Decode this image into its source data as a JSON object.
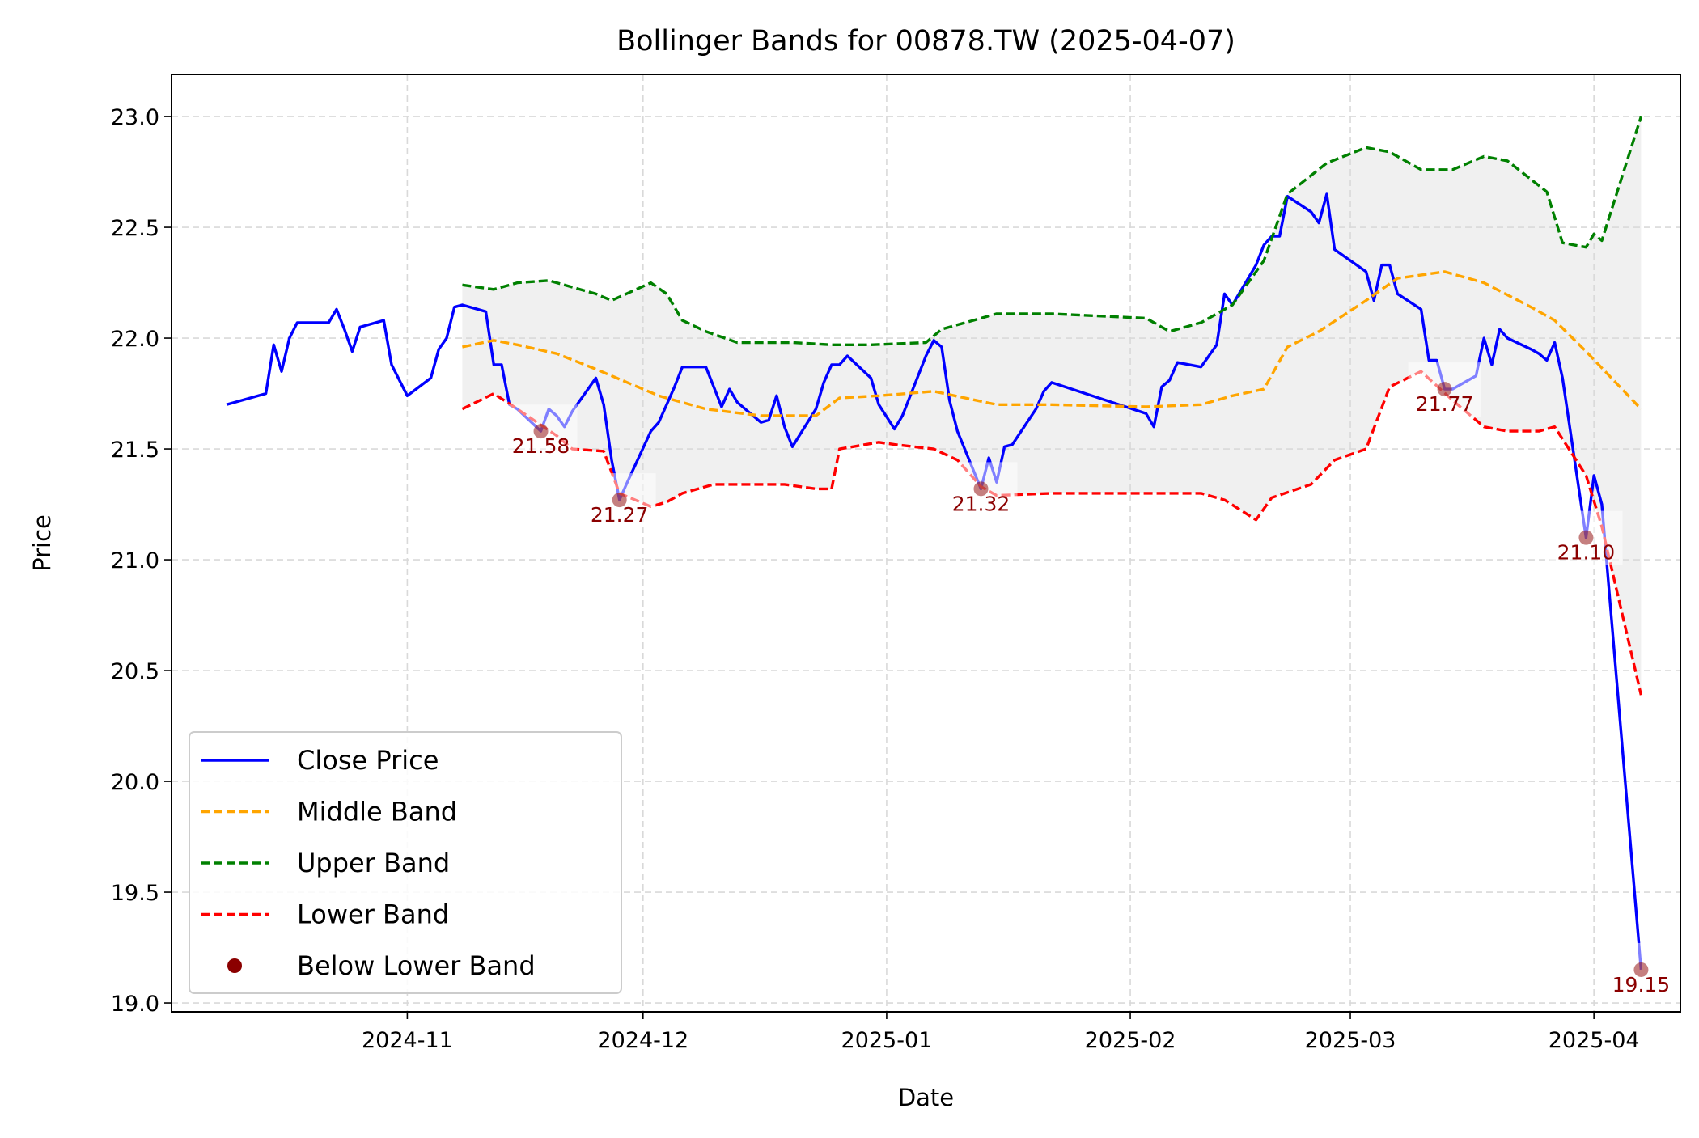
{
  "chart_data": {
    "type": "line",
    "title": "Bollinger Bands for 00878.TW (2025-04-07)",
    "xlabel": "Date",
    "ylabel": "Price",
    "xlim": [
      "2024-10-02",
      "2025-04-12"
    ],
    "ylim": [
      18.96,
      23.19
    ],
    "x_ticks": [
      "2024-11",
      "2024-12",
      "2025-01",
      "2025-02",
      "2025-03",
      "2025-04"
    ],
    "y_ticks": [
      "19.0",
      "19.5",
      "20.0",
      "20.5",
      "21.0",
      "21.5",
      "22.0",
      "22.5",
      "23.0"
    ],
    "grid": true,
    "legend_position": "lower-left",
    "colors": {
      "close": "#0000ff",
      "middle": "#ffa500",
      "upper": "#008000",
      "lower": "#ff0000",
      "below": "#8b0000",
      "band_fill": "#f0f0f0",
      "grid": "#d9d9d9"
    },
    "legend": [
      "Close Price",
      "Middle Band",
      "Upper Band",
      "Lower Band",
      "Below Lower Band"
    ],
    "series": [
      {
        "name": "Close Price",
        "color": "#0000ff",
        "style": "solid",
        "points": [
          [
            "2024-10-09",
            21.7
          ],
          [
            "2024-10-14",
            21.75
          ],
          [
            "2024-10-15",
            21.97
          ],
          [
            "2024-10-16",
            21.85
          ],
          [
            "2024-10-17",
            22.0
          ],
          [
            "2024-10-18",
            22.07
          ],
          [
            "2024-10-21",
            22.07
          ],
          [
            "2024-10-22",
            22.07
          ],
          [
            "2024-10-23",
            22.13
          ],
          [
            "2024-10-24",
            22.04
          ],
          [
            "2024-10-25",
            21.94
          ],
          [
            "2024-10-26",
            22.05
          ],
          [
            "2024-10-29",
            22.08
          ],
          [
            "2024-10-30",
            21.88
          ],
          [
            "2024-11-01",
            21.74
          ],
          [
            "2024-11-04",
            21.82
          ],
          [
            "2024-11-05",
            21.95
          ],
          [
            "2024-11-06",
            22.0
          ],
          [
            "2024-11-07",
            22.14
          ],
          [
            "2024-11-08",
            22.15
          ],
          [
            "2024-11-11",
            22.12
          ],
          [
            "2024-11-12",
            21.88
          ],
          [
            "2024-11-13",
            21.88
          ],
          [
            "2024-11-14",
            21.7
          ],
          [
            "2024-11-15",
            21.68
          ],
          [
            "2024-11-18",
            21.58
          ],
          [
            "2024-11-19",
            21.68
          ],
          [
            "2024-11-20",
            21.65
          ],
          [
            "2024-11-21",
            21.6
          ],
          [
            "2024-11-22",
            21.67
          ],
          [
            "2024-11-25",
            21.82
          ],
          [
            "2024-11-26",
            21.7
          ],
          [
            "2024-11-27",
            21.45
          ],
          [
            "2024-11-28",
            21.27
          ],
          [
            "2024-11-29",
            21.35
          ],
          [
            "2024-12-02",
            21.58
          ],
          [
            "2024-12-03",
            21.62
          ],
          [
            "2024-12-04",
            21.7
          ],
          [
            "2024-12-05",
            21.78
          ],
          [
            "2024-12-06",
            21.87
          ],
          [
            "2024-12-09",
            21.87
          ],
          [
            "2024-12-10",
            21.78
          ],
          [
            "2024-12-11",
            21.69
          ],
          [
            "2024-12-12",
            21.77
          ],
          [
            "2024-12-13",
            21.71
          ],
          [
            "2024-12-16",
            21.62
          ],
          [
            "2024-12-17",
            21.63
          ],
          [
            "2024-12-18",
            21.74
          ],
          [
            "2024-12-19",
            21.6
          ],
          [
            "2024-12-20",
            21.51
          ],
          [
            "2024-12-23",
            21.68
          ],
          [
            "2024-12-24",
            21.8
          ],
          [
            "2024-12-25",
            21.88
          ],
          [
            "2024-12-26",
            21.88
          ],
          [
            "2024-12-27",
            21.92
          ],
          [
            "2024-12-30",
            21.82
          ],
          [
            "2024-12-31",
            21.7
          ],
          [
            "2025-01-02",
            21.59
          ],
          [
            "2025-01-03",
            21.65
          ],
          [
            "2025-01-06",
            21.92
          ],
          [
            "2025-01-07",
            21.99
          ],
          [
            "2025-01-08",
            21.96
          ],
          [
            "2025-01-09",
            21.72
          ],
          [
            "2025-01-10",
            21.58
          ],
          [
            "2025-01-13",
            21.32
          ],
          [
            "2025-01-14",
            21.46
          ],
          [
            "2025-01-15",
            21.35
          ],
          [
            "2025-01-16",
            21.51
          ],
          [
            "2025-01-17",
            21.52
          ],
          [
            "2025-01-20",
            21.68
          ],
          [
            "2025-01-21",
            21.76
          ],
          [
            "2025-01-22",
            21.8
          ],
          [
            "2025-02-03",
            21.66
          ],
          [
            "2025-02-04",
            21.6
          ],
          [
            "2025-02-05",
            21.78
          ],
          [
            "2025-02-06",
            21.81
          ],
          [
            "2025-02-07",
            21.89
          ],
          [
            "2025-02-10",
            21.87
          ],
          [
            "2025-02-11",
            21.92
          ],
          [
            "2025-02-12",
            21.97
          ],
          [
            "2025-02-13",
            22.2
          ],
          [
            "2025-02-14",
            22.15
          ],
          [
            "2025-02-17",
            22.33
          ],
          [
            "2025-02-18",
            22.42
          ],
          [
            "2025-02-19",
            22.46
          ],
          [
            "2025-02-20",
            22.46
          ],
          [
            "2025-02-21",
            22.64
          ],
          [
            "2025-02-24",
            22.57
          ],
          [
            "2025-02-25",
            22.52
          ],
          [
            "2025-02-26",
            22.65
          ],
          [
            "2025-02-27",
            22.4
          ],
          [
            "2025-03-03",
            22.3
          ],
          [
            "2025-03-04",
            22.17
          ],
          [
            "2025-03-05",
            22.33
          ],
          [
            "2025-03-06",
            22.33
          ],
          [
            "2025-03-07",
            22.2
          ],
          [
            "2025-03-10",
            22.13
          ],
          [
            "2025-03-11",
            21.9
          ],
          [
            "2025-03-12",
            21.9
          ],
          [
            "2025-03-13",
            21.77
          ],
          [
            "2025-03-14",
            21.77
          ],
          [
            "2025-03-17",
            21.83
          ],
          [
            "2025-03-18",
            22.0
          ],
          [
            "2025-03-19",
            21.88
          ],
          [
            "2025-03-20",
            22.04
          ],
          [
            "2025-03-21",
            22.0
          ],
          [
            "2025-03-24",
            21.95
          ],
          [
            "2025-03-25",
            21.93
          ],
          [
            "2025-03-26",
            21.9
          ],
          [
            "2025-03-27",
            21.98
          ],
          [
            "2025-03-28",
            21.82
          ],
          [
            "2025-03-31",
            21.1
          ],
          [
            "2025-04-01",
            21.38
          ],
          [
            "2025-04-02",
            21.25
          ],
          [
            "2025-04-07",
            19.15
          ]
        ]
      },
      {
        "name": "Middle Band",
        "color": "#ffa500",
        "style": "dashed",
        "points": [
          [
            "2024-11-08",
            21.96
          ],
          [
            "2024-11-12",
            21.99
          ],
          [
            "2024-11-15",
            21.97
          ],
          [
            "2024-11-20",
            21.93
          ],
          [
            "2024-11-25",
            21.86
          ],
          [
            "2024-11-29",
            21.8
          ],
          [
            "2024-12-03",
            21.74
          ],
          [
            "2024-12-09",
            21.68
          ],
          [
            "2024-12-16",
            21.65
          ],
          [
            "2024-12-23",
            21.65
          ],
          [
            "2024-12-26",
            21.73
          ],
          [
            "2024-12-31",
            21.74
          ],
          [
            "2025-01-07",
            21.76
          ],
          [
            "2025-01-15",
            21.7
          ],
          [
            "2025-01-22",
            21.7
          ],
          [
            "2025-02-03",
            21.69
          ],
          [
            "2025-02-10",
            21.7
          ],
          [
            "2025-02-14",
            21.74
          ],
          [
            "2025-02-18",
            21.77
          ],
          [
            "2025-02-21",
            21.96
          ],
          [
            "2025-02-25",
            22.03
          ],
          [
            "2025-03-03",
            22.17
          ],
          [
            "2025-03-07",
            22.27
          ],
          [
            "2025-03-13",
            22.3
          ],
          [
            "2025-03-18",
            22.25
          ],
          [
            "2025-03-24",
            22.14
          ],
          [
            "2025-03-27",
            22.08
          ],
          [
            "2025-03-31",
            21.94
          ],
          [
            "2025-04-07",
            21.68
          ]
        ]
      },
      {
        "name": "Upper Band",
        "color": "#008000",
        "style": "dashed",
        "points": [
          [
            "2024-11-08",
            22.24
          ],
          [
            "2024-11-12",
            22.22
          ],
          [
            "2024-11-15",
            22.25
          ],
          [
            "2024-11-19",
            22.26
          ],
          [
            "2024-11-25",
            22.2
          ],
          [
            "2024-11-27",
            22.17
          ],
          [
            "2024-12-02",
            22.25
          ],
          [
            "2024-12-04",
            22.2
          ],
          [
            "2024-12-06",
            22.08
          ],
          [
            "2024-12-09",
            22.03
          ],
          [
            "2024-12-13",
            21.98
          ],
          [
            "2024-12-20",
            21.98
          ],
          [
            "2024-12-25",
            21.97
          ],
          [
            "2024-12-30",
            21.97
          ],
          [
            "2025-01-06",
            21.98
          ],
          [
            "2025-01-08",
            22.04
          ],
          [
            "2025-01-13",
            22.09
          ],
          [
            "2025-01-15",
            22.11
          ],
          [
            "2025-01-22",
            22.11
          ],
          [
            "2025-02-03",
            22.09
          ],
          [
            "2025-02-06",
            22.03
          ],
          [
            "2025-02-10",
            22.07
          ],
          [
            "2025-02-14",
            22.15
          ],
          [
            "2025-02-18",
            22.35
          ],
          [
            "2025-02-21",
            22.65
          ],
          [
            "2025-02-26",
            22.79
          ],
          [
            "2025-03-03",
            22.86
          ],
          [
            "2025-03-06",
            22.84
          ],
          [
            "2025-03-10",
            22.76
          ],
          [
            "2025-03-14",
            22.76
          ],
          [
            "2025-03-18",
            22.82
          ],
          [
            "2025-03-21",
            22.8
          ],
          [
            "2025-03-26",
            22.66
          ],
          [
            "2025-03-28",
            22.43
          ],
          [
            "2025-03-31",
            22.41
          ],
          [
            "2025-04-01",
            22.47
          ],
          [
            "2025-04-02",
            22.44
          ],
          [
            "2025-04-07",
            23.0
          ]
        ]
      },
      {
        "name": "Lower Band",
        "color": "#ff0000",
        "style": "dashed",
        "points": [
          [
            "2024-11-08",
            21.68
          ],
          [
            "2024-11-12",
            21.75
          ],
          [
            "2024-11-15",
            21.68
          ],
          [
            "2024-11-20",
            21.56
          ],
          [
            "2024-11-22",
            21.5
          ],
          [
            "2024-11-26",
            21.49
          ],
          [
            "2024-11-28",
            21.3
          ],
          [
            "2024-12-02",
            21.24
          ],
          [
            "2024-12-04",
            21.26
          ],
          [
            "2024-12-06",
            21.3
          ],
          [
            "2024-12-10",
            21.34
          ],
          [
            "2024-12-19",
            21.34
          ],
          [
            "2024-12-23",
            21.32
          ],
          [
            "2024-12-25",
            21.32
          ],
          [
            "2024-12-26",
            21.5
          ],
          [
            "2024-12-31",
            21.53
          ],
          [
            "2025-01-02",
            21.52
          ],
          [
            "2025-01-07",
            21.5
          ],
          [
            "2025-01-10",
            21.45
          ],
          [
            "2025-01-13",
            21.33
          ],
          [
            "2025-01-15",
            21.29
          ],
          [
            "2025-01-22",
            21.3
          ],
          [
            "2025-02-03",
            21.3
          ],
          [
            "2025-02-10",
            21.3
          ],
          [
            "2025-02-13",
            21.27
          ],
          [
            "2025-02-17",
            21.18
          ],
          [
            "2025-02-19",
            21.28
          ],
          [
            "2025-02-24",
            21.34
          ],
          [
            "2025-02-27",
            21.45
          ],
          [
            "2025-03-03",
            21.5
          ],
          [
            "2025-03-06",
            21.78
          ],
          [
            "2025-03-10",
            21.85
          ],
          [
            "2025-03-14",
            21.72
          ],
          [
            "2025-03-18",
            21.6
          ],
          [
            "2025-03-21",
            21.58
          ],
          [
            "2025-03-25",
            21.58
          ],
          [
            "2025-03-27",
            21.6
          ],
          [
            "2025-03-31",
            21.38
          ],
          [
            "2025-04-02",
            21.15
          ],
          [
            "2025-04-07",
            20.39
          ]
        ]
      }
    ],
    "band_fill": {
      "upper_series": "Upper Band",
      "lower_series": "Lower Band"
    },
    "below_lower_band": {
      "name": "Below Lower Band",
      "color": "#8b0000",
      "points": [
        {
          "x": "2024-11-18",
          "y": 21.58,
          "label": "21.58"
        },
        {
          "x": "2024-11-28",
          "y": 21.27,
          "label": "21.27"
        },
        {
          "x": "2025-01-13",
          "y": 21.32,
          "label": "21.32"
        },
        {
          "x": "2025-03-13",
          "y": 21.77,
          "label": "21.77"
        },
        {
          "x": "2025-03-31",
          "y": 21.1,
          "label": "21.10"
        },
        {
          "x": "2025-04-07",
          "y": 19.15,
          "label": "19.15"
        }
      ]
    }
  }
}
